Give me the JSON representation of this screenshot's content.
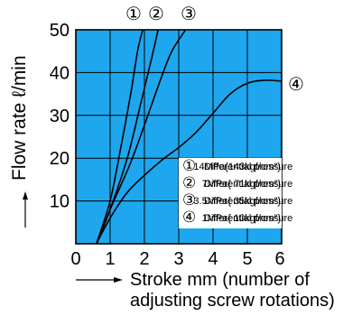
{
  "chart_data": {
    "type": "line",
    "ylabel": "Flow rate ℓ/min",
    "xlabel_line1": "Stroke mm (number of",
    "xlabel_line2": "adjusting screw rotations)",
    "xlim": [
      0,
      6
    ],
    "ylim": [
      0,
      50
    ],
    "xticks": [
      "0",
      "1",
      "2",
      "3",
      "4",
      "5",
      "6"
    ],
    "yticks": [
      "10",
      "20",
      "30",
      "40",
      "50"
    ],
    "grid": true,
    "plot_background": "#1ea7ee",
    "series_color": "#000000",
    "series": [
      {
        "marker": "①",
        "x": [
          0.6,
          1.0,
          1.3,
          1.6,
          1.8,
          1.95
        ],
        "y": [
          0,
          10,
          22,
          35,
          45,
          50
        ]
      },
      {
        "marker": "②",
        "x": [
          0.6,
          1.0,
          1.5,
          1.9,
          2.2,
          2.4
        ],
        "y": [
          0,
          8,
          20,
          33,
          43,
          50
        ]
      },
      {
        "marker": "③",
        "x": [
          0.6,
          1.0,
          1.6,
          2.1,
          2.5,
          2.8,
          3.2
        ],
        "y": [
          0,
          8,
          19,
          30,
          39,
          45,
          50
        ]
      },
      {
        "marker": "④",
        "x": [
          0.6,
          1.0,
          1.5,
          2.0,
          2.5,
          3.0,
          3.5,
          4.0,
          4.5,
          5.0,
          5.5,
          6.0
        ],
        "y": [
          0,
          6,
          12,
          16,
          19.5,
          22.5,
          26,
          30.5,
          35,
          37.5,
          38.2,
          38
        ]
      }
    ],
    "legend": {
      "placement": "bottom-right",
      "entries": [
        {
          "marker": "①",
          "label": "Differential pressure",
          "value": "14MPa{143kgf/cm²}"
        },
        {
          "marker": "②",
          "label": "Differential pressure",
          "value": "7MPa{ 71kgf/cm²}"
        },
        {
          "marker": "③",
          "label": "Differential pressure",
          "value": "3.5MPa{ 35kgf/cm²}"
        },
        {
          "marker": "④",
          "label": "Differential pressure",
          "value": "1MPa{ 10kgf/cm²}"
        }
      ]
    }
  }
}
